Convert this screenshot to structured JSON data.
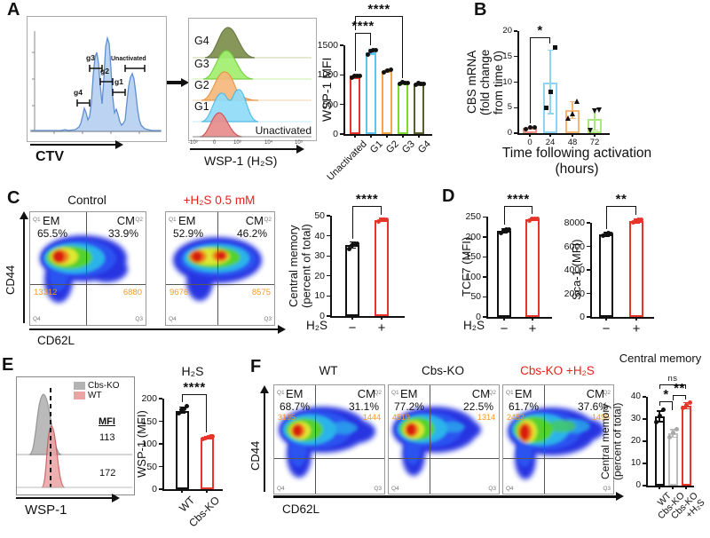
{
  "panels": {
    "A": {
      "label": "A",
      "ctv": {
        "xlabel": "CTV",
        "gates": [
          "g4",
          "g3",
          "g2",
          "g1"
        ],
        "unactivated": "Unactivated"
      },
      "ridge": {
        "groups": [
          "G4",
          "G3",
          "G2",
          "G1"
        ],
        "unactivated": "Unactivated",
        "xlabel": "WSP-1 (H₂S)",
        "xticks": [
          "-10³",
          "0",
          "10³",
          "10⁴",
          "10⁵"
        ]
      }
    },
    "B": {
      "label": "B"
    },
    "C": {
      "label": "C",
      "y_axis": "CD44",
      "x_axis": "CD62L",
      "plots": [
        {
          "title": "Control",
          "em_pct": "65.5%",
          "cm_pct": "33.9%",
          "count_left": "13312",
          "count_right": "6880"
        },
        {
          "title": "+H₂S 0.5 mM",
          "em_pct": "52.9%",
          "cm_pct": "46.2%",
          "count_left": "9676",
          "count_right": "8575"
        }
      ]
    },
    "D": {
      "label": "D"
    },
    "E": {
      "label": "E",
      "legend": [
        {
          "label": "Cbs-KO"
        },
        {
          "label": "WT"
        }
      ],
      "mfi_header": "MFI",
      "mfi_values": [
        "113",
        "172"
      ],
      "xlabel": "WSP-1"
    },
    "F": {
      "label": "F",
      "y_axis": "CD44",
      "x_axis": "CD62L",
      "plots": [
        {
          "title": "WT",
          "em_pct": "68.7%",
          "cm_pct": "31.1%",
          "count_left": "3195",
          "count_right": "1444"
        },
        {
          "title": "Cbs-KO",
          "em_pct": "77.2%",
          "cm_pct": "22.5%",
          "count_left": "4519",
          "count_right": "1314"
        },
        {
          "title": "Cbs-KO +H₂S",
          "em_pct": "61.7%",
          "cm_pct": "37.6%",
          "count_left": "2452",
          "count_right": "1495"
        }
      ]
    }
  },
  "flow": {
    "q1": "Q1",
    "q2": "Q2",
    "q3": "Q3",
    "q4": "Q4",
    "em": "EM",
    "cm": "CM"
  },
  "chart_data": [
    {
      "id": "wsp1_mfi",
      "type": "bar",
      "ylabel": "WSP-1 MFI",
      "ylim": [
        0,
        1500
      ],
      "yticks": [
        0,
        500,
        1000,
        1500
      ],
      "categories": [
        "Unactivated",
        "G1",
        "G2",
        "G3",
        "G4"
      ],
      "values": [
        990,
        1380,
        1060,
        860,
        845
      ],
      "colors": [
        "#e8352a",
        "#5bc6f0",
        "#f5a34c",
        "#80d926",
        "#55602e"
      ],
      "point_color": "#111",
      "points": [
        [
          950,
          975,
          990,
          1000
        ],
        [
          1350,
          1390,
          1420,
          1440
        ],
        [
          1040,
          1065,
          1085
        ],
        [
          852,
          860,
          868,
          876
        ],
        [
          835,
          845,
          855,
          866
        ]
      ],
      "err": [
        [
          945,
          1000
        ],
        [
          1350,
          1435
        ],
        [
          1040,
          1090
        ],
        [
          850,
          878
        ],
        [
          832,
          866
        ]
      ],
      "sig": [
        {
          "from": 0,
          "to": 1,
          "label": "****"
        },
        {
          "from": 0,
          "to": 3,
          "label": "****"
        }
      ]
    },
    {
      "id": "cbs_mrna",
      "type": "bar",
      "ylabel_lines": [
        "CBS mRNA",
        "(fold change",
        "from time 0)"
      ],
      "xlabel_lines": [
        "Time following activation",
        "(hours)"
      ],
      "ylim": [
        0,
        20
      ],
      "yticks": [
        0,
        5,
        10,
        15,
        20
      ],
      "categories": [
        "0",
        "24",
        "48",
        "72"
      ],
      "values": [
        1.0,
        9.9,
        4.6,
        2.7
      ],
      "colors": [
        "#f09088",
        "#8ed3f2",
        "#f5b575",
        "#a8e87e"
      ],
      "point_color": "#111",
      "markers": [
        "circle",
        "square",
        "tri-up",
        "tri-down"
      ],
      "points": [
        [
          0.85,
          1.0,
          1.1
        ],
        [
          5.0,
          8.0,
          16.8
        ],
        [
          2.9,
          3.6,
          6.3
        ],
        [
          0.5,
          4.2,
          4.5
        ]
      ],
      "err": [
        [
          0.85,
          1.15
        ],
        [
          3.8,
          16.3
        ],
        [
          2.9,
          6.2
        ],
        [
          0.6,
          4.8
        ]
      ],
      "sig": [
        {
          "from": 0,
          "to": 1,
          "label": "*"
        }
      ]
    },
    {
      "id": "cm_c",
      "type": "bar",
      "ylabel_lines": [
        "Central memory",
        "(percent of total)"
      ],
      "ylim": [
        0,
        50
      ],
      "yticks": [
        0,
        10,
        20,
        30,
        40,
        50
      ],
      "x_prefix": "H₂S",
      "categories": [
        "−",
        "+"
      ],
      "values": [
        35.2,
        48.0
      ],
      "colors": [
        "#111111",
        "#e8352a"
      ],
      "point_colors": [
        "#111111",
        "#e8352a"
      ],
      "points": [
        [
          33.6,
          34.8,
          35.4,
          36.6
        ],
        [
          47.1,
          47.7,
          48.2,
          48.6
        ]
      ],
      "err": [
        [
          33.8,
          36.9
        ],
        [
          47.2,
          48.8
        ]
      ],
      "sig": [
        {
          "from": 0,
          "to": 1,
          "label": "****"
        }
      ]
    },
    {
      "id": "tcf7",
      "type": "bar",
      "ylabel": "TCF7 (MFI)",
      "ylim": [
        0,
        250
      ],
      "yticks": [
        0,
        50,
        100,
        150,
        200,
        250
      ],
      "x_prefix": "H₂S",
      "categories": [
        "−",
        "+"
      ],
      "values": [
        216,
        245
      ],
      "colors": [
        "#111111",
        "#e8352a"
      ],
      "point_colors": [
        "#111111",
        "#e8352a"
      ],
      "points": [
        [
          210,
          215,
          219,
          222
        ],
        [
          240,
          244,
          246,
          248
        ]
      ],
      "err": [
        [
          211,
          221
        ],
        [
          241,
          248
        ]
      ],
      "sig": [
        {
          "from": 0,
          "to": 1,
          "label": "****"
        }
      ]
    },
    {
      "id": "sca1",
      "type": "bar",
      "ylabel": "Sca-1 (MFI)",
      "ylim": [
        0,
        8000
      ],
      "yticks": [
        0,
        2000,
        4000,
        6000,
        8000
      ],
      "categories": [
        "−",
        "+"
      ],
      "values": [
        7000,
        8150
      ],
      "colors": [
        "#111111",
        "#e8352a"
      ],
      "point_colors": [
        "#111111",
        "#e8352a"
      ],
      "points": [
        [
          6900,
          7000,
          7100,
          7160
        ],
        [
          8050,
          8150,
          8280,
          8350
        ]
      ],
      "err": [
        [
          6850,
          7200
        ],
        [
          7950,
          8300
        ]
      ],
      "sig": [
        {
          "from": 0,
          "to": 1,
          "label": "**"
        }
      ]
    },
    {
      "id": "wsp1_e",
      "type": "bar",
      "title": "H₂S",
      "ylabel": "WSP-1 (MFI)",
      "ylim": [
        0,
        200
      ],
      "yticks": [
        0,
        50,
        100,
        150,
        200
      ],
      "categories": [
        "WT",
        "Cbs-KO"
      ],
      "values": [
        172,
        113
      ],
      "colors": [
        "#111111",
        "#e8352a"
      ],
      "point_colors": [
        "#111111",
        "#e8352a"
      ],
      "points": [
        [
          168,
          173,
          177,
          185
        ],
        [
          110,
          112,
          114,
          116,
          117
        ]
      ],
      "err": [
        [
          169,
          181
        ],
        [
          111,
          116
        ]
      ],
      "sig": [
        {
          "from": 0,
          "to": 1,
          "label": "****"
        }
      ]
    },
    {
      "id": "cm_f",
      "type": "bar",
      "title": "Central memory",
      "ylabel_lines": [
        "Central memory",
        "(percent of total)"
      ],
      "ylim": [
        0,
        40
      ],
      "yticks": [
        0,
        10,
        20,
        30,
        40
      ],
      "categories": [
        "WT",
        "Cbs-KO",
        "Cbs-KO\n+H₂S"
      ],
      "values": [
        31.2,
        23.5,
        36.0
      ],
      "colors": [
        "#111111",
        "#bcbcbc",
        "#e8352a"
      ],
      "point_colors": [
        "#111111",
        "#a8a8a8",
        "#e8352a"
      ],
      "points": [
        [
          28.6,
          31.0,
          34.3
        ],
        [
          22.0,
          23.3,
          25.4
        ],
        [
          35.0,
          36.0,
          37.3
        ]
      ],
      "err": [
        [
          28.8,
          33.6
        ],
        [
          21.8,
          25.2
        ],
        [
          34.6,
          37.4
        ]
      ],
      "sig": [
        {
          "from": 0,
          "to": 2,
          "label": "ns"
        },
        {
          "from": 1,
          "to": 2,
          "label": "**"
        },
        {
          "from": 0,
          "to": 1,
          "label": "*"
        }
      ]
    }
  ]
}
